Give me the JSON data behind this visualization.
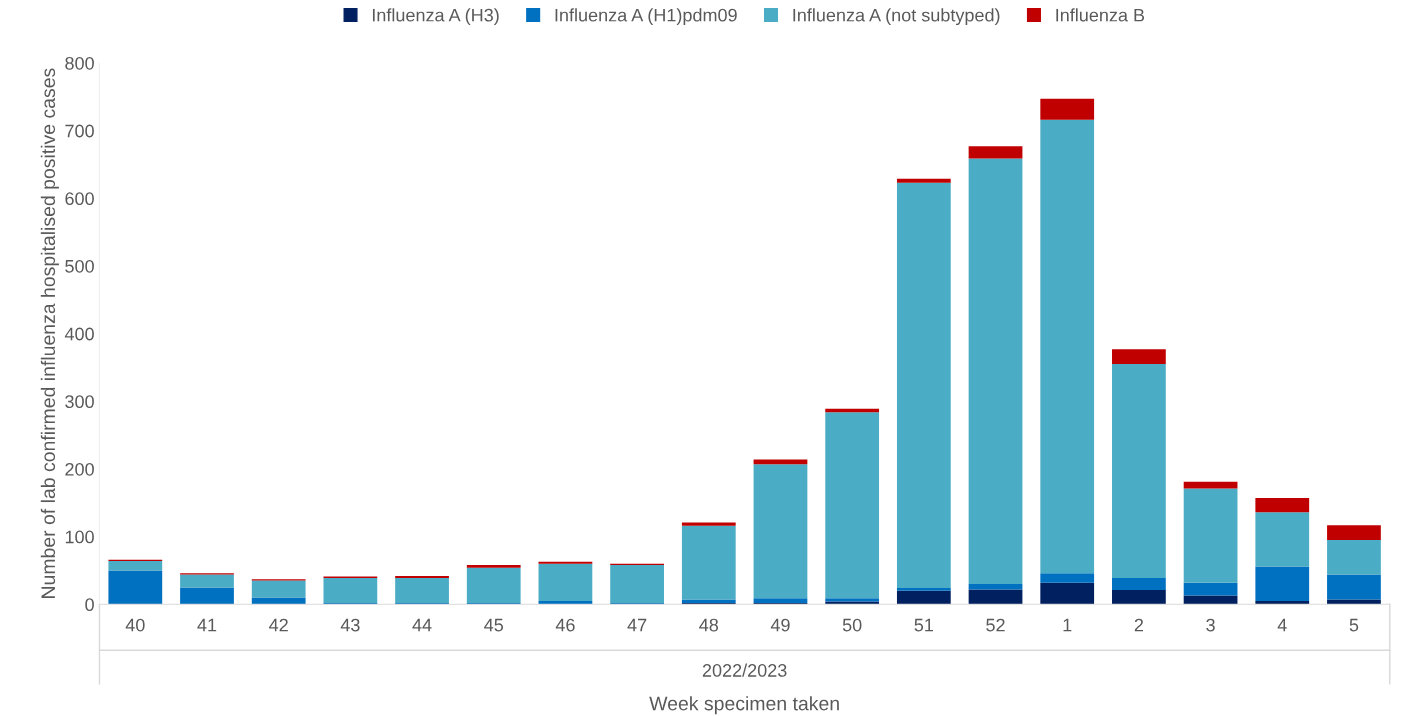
{
  "chart_data": {
    "type": "bar",
    "stacked": true,
    "ylabel": "Number of lab confirmed influenza hospitalised positive cases",
    "xlabel": "Week specimen taken",
    "annotations": [
      "2022/2023"
    ],
    "categories": [
      "40",
      "41",
      "42",
      "43",
      "44",
      "45",
      "46",
      "47",
      "48",
      "49",
      "50",
      "51",
      "52",
      "1",
      "2",
      "3",
      "4",
      "5"
    ],
    "series": [
      {
        "name": "Influenza A (H3)",
        "color": "#002060",
        "values": [
          0,
          0,
          0,
          0,
          0,
          0,
          0,
          0,
          2,
          2,
          4,
          20,
          22,
          32,
          21,
          13,
          5,
          7
        ]
      },
      {
        "name": "Influenza A (H1)pdm09",
        "color": "#0070c0",
        "values": [
          50,
          25,
          10,
          2,
          2,
          2,
          5,
          2,
          5,
          7,
          5,
          4,
          8,
          14,
          18,
          19,
          51,
          37
        ]
      },
      {
        "name": "Influenza A (not subtyped)",
        "color": "#4bacc6",
        "values": [
          14,
          19,
          25,
          37,
          37,
          52,
          55,
          56,
          109,
          198,
          275,
          599,
          629,
          670,
          316,
          139,
          80,
          51
        ]
      },
      {
        "name": "Influenza B",
        "color": "#c00000",
        "values": [
          2,
          2,
          2,
          2,
          3,
          4,
          3,
          2,
          5,
          7,
          5,
          6,
          18,
          31,
          22,
          10,
          21,
          22
        ]
      }
    ],
    "ylim": [
      0,
      800
    ],
    "yticks": [
      0,
      100,
      200,
      300,
      400,
      500,
      600,
      700,
      800
    ],
    "grid": false,
    "legend": "top"
  }
}
